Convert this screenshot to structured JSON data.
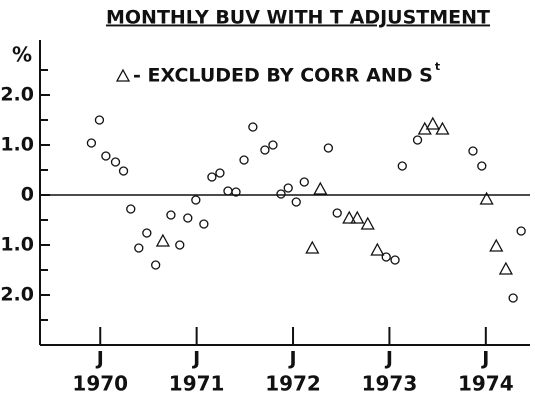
{
  "chart_data": {
    "type": "scatter",
    "title": "MONTHLY BUV WITH  T ADJUSTMENT",
    "ylabel": "%",
    "xlim": [
      -7.5,
      53.5
    ],
    "ylim": [
      -3,
      3.1
    ],
    "yticks": [
      {
        "value": 2,
        "label": "2.0"
      },
      {
        "value": 1,
        "label": "1.0"
      },
      0,
      {
        "value": -1,
        "label": "-1.0"
      },
      {
        "value": -2,
        "label": "-2.0"
      }
    ],
    "yminor_ticks": [
      2.5,
      1.5,
      0.5,
      -0.5,
      -1.5,
      -2.5
    ],
    "xticks": [
      {
        "value": 0,
        "label": "J"
      },
      {
        "value": 12,
        "label": "J"
      },
      {
        "value": 24,
        "label": "J"
      },
      {
        "value": 36,
        "label": "J"
      },
      {
        "value": 48,
        "label": "J"
      }
    ],
    "year_labels": [
      "1970",
      "1971",
      "1972",
      "1973",
      "1974"
    ],
    "hline": 0,
    "color": "#111111",
    "legend_superscript": "t",
    "series": [
      {
        "marker": "circle",
        "x": [
          -1.1,
          -0.1,
          0.7,
          1.9,
          2.9,
          3.8,
          4.8,
          5.8,
          6.9,
          8.8,
          9.9,
          10.9,
          11.9,
          12.9,
          13.9,
          14.9,
          15.9,
          16.9,
          17.9,
          19.0,
          20.5,
          21.5,
          22.5,
          23.4,
          24.4,
          25.4,
          28.4,
          29.5,
          35.6,
          36.7,
          37.6,
          39.5,
          46.4,
          47.5,
          51.4,
          52.4
        ],
        "values": [
          1.04,
          1.5,
          0.78,
          0.66,
          0.48,
          -0.28,
          -1.06,
          -0.76,
          -1.4,
          -0.4,
          -1.0,
          -0.46,
          -0.1,
          -0.58,
          0.36,
          0.44,
          0.08,
          0.06,
          0.7,
          1.36,
          0.9,
          1.0,
          0.02,
          0.14,
          -0.14,
          0.26,
          0.94,
          -0.36,
          -1.24,
          -1.3,
          0.58,
          1.1,
          0.88,
          0.58,
          -2.06,
          -0.72
        ]
      },
      {
        "name": "- EXCLUDED BY CORR AND S",
        "marker": "triangle",
        "x": [
          7.8,
          26.4,
          27.4,
          31.0,
          32.0,
          33.3,
          34.5,
          40.4,
          41.4,
          42.6,
          48.1,
          49.3,
          50.5
        ],
        "values": [
          -0.92,
          -1.06,
          0.12,
          -0.46,
          -0.46,
          -0.58,
          -1.1,
          1.32,
          1.42,
          1.32,
          -0.08,
          -1.02,
          -1.48
        ]
      }
    ]
  }
}
